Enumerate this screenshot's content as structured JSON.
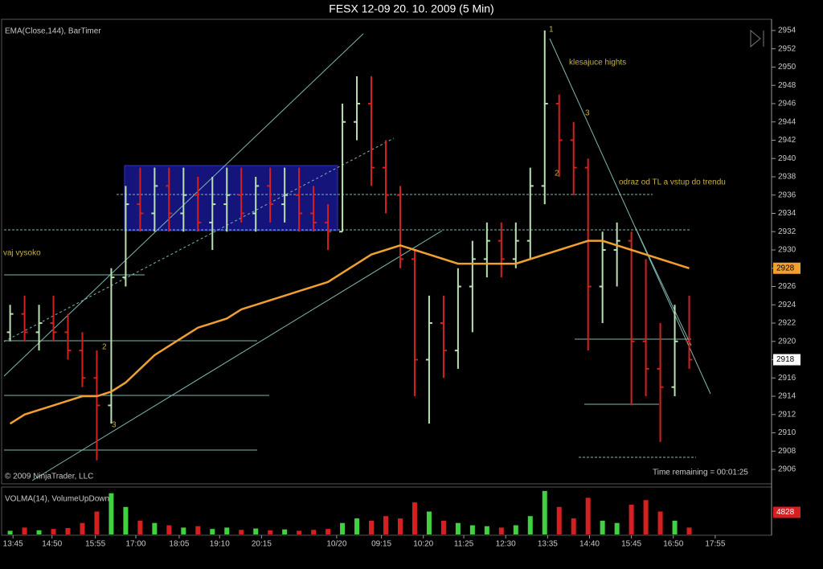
{
  "chart_data": {
    "type": "ohlc",
    "title": "FESX 12-09  20. 10. 2009 (5 Min)",
    "indicator_label": "EMA(Close,144), BarTimer",
    "volume_label": "VOLMA(14), VolumeUpDown",
    "copyright": "© 2009 NinjaTrader, LLC",
    "timer": "Time remaining = 00:01:25",
    "annotations": [
      "klesajuce hights",
      "odraz od TL a vstup do trendu",
      "vaj vysoko",
      "1",
      "2",
      "3",
      "2",
      "3"
    ],
    "xlim": [
      -0.7,
      52.7
    ],
    "xticks": [
      {
        "value": 0.2,
        "label": "13:45"
      },
      {
        "value": 2.9,
        "label": "14:50"
      },
      {
        "value": 5.9,
        "label": "15:55"
      },
      {
        "value": 8.7,
        "label": "17:00"
      },
      {
        "value": 11.7,
        "label": "18:05"
      },
      {
        "value": 14.5,
        "label": "19:10"
      },
      {
        "value": 17.4,
        "label": "20:15"
      },
      {
        "value": 22.6,
        "label": "10/20"
      },
      {
        "value": 25.7,
        "label": "09:15"
      },
      {
        "value": 28.6,
        "label": "10:20"
      },
      {
        "value": 31.4,
        "label": "11:25"
      },
      {
        "value": 34.3,
        "label": "12:30"
      },
      {
        "value": 37.2,
        "label": "13:35"
      },
      {
        "value": 40.1,
        "label": "14:40"
      },
      {
        "value": 43,
        "label": "15:45"
      },
      {
        "value": 45.9,
        "label": "16:50"
      },
      {
        "value": 48.8,
        "label": "17:55"
      }
    ],
    "ylim": [
      2904.6,
      2955.4
    ],
    "yticks": [
      2906,
      2908,
      2910,
      2912,
      2914,
      2916,
      2918,
      2920,
      2922,
      2924,
      2926,
      2928,
      2930,
      2932,
      2934,
      2936,
      2938,
      2940,
      2942,
      2944,
      2946,
      2948,
      2950,
      2952,
      2954
    ],
    "up_color": "#b8e0b0",
    "down_color": "#d42020",
    "open": [
      2921,
      2923,
      2921,
      2922,
      2921,
      2919,
      2916,
      2913,
      2927,
      2935,
      2934,
      2937,
      2934,
      2936,
      2933,
      2935,
      2936,
      2934,
      2937,
      2935,
      2936,
      2934,
      2933,
      2932,
      2944,
      2946,
      2939,
      2936,
      2929,
      2918,
      2922,
      2919,
      2926,
      2929,
      2931,
      2929,
      2931,
      2937,
      2946,
      2942,
      2939,
      2926,
      2930,
      2931,
      2920,
      2917,
      2915,
      2920
    ],
    "high": [
      2924,
      2925,
      2924,
      2925,
      2923,
      2921,
      2919,
      2928,
      2937,
      2939,
      2939,
      2939,
      2939,
      2938,
      2938,
      2939,
      2939,
      2938,
      2939,
      2939,
      2939,
      2937,
      2935,
      2946,
      2949,
      2949,
      2942,
      2937,
      2930,
      2925,
      2925,
      2928,
      2931,
      2933,
      2933,
      2933,
      2939,
      2954,
      2947,
      2944,
      2940,
      2932,
      2933,
      2932,
      2929,
      2922,
      2924,
      2925
    ],
    "low": [
      2920,
      2920,
      2919,
      2920,
      2918,
      2915,
      2907,
      2911,
      2926,
      2932,
      2932,
      2932,
      2932,
      2932,
      2930,
      2932,
      2933,
      2932,
      2933,
      2933,
      2932,
      2932,
      2930,
      2932,
      2942,
      2937,
      2934,
      2928,
      2914,
      2911,
      2916,
      2917,
      2921,
      2927,
      2927,
      2928,
      2929,
      2935,
      2938,
      2936,
      2919,
      2922,
      2926,
      2913,
      2914,
      2909,
      2914,
      2917
    ],
    "close": [
      2923,
      2921,
      2922,
      2921,
      2919,
      2916,
      2913,
      2927,
      2935,
      2934,
      2937,
      2934,
      2936,
      2933,
      2935,
      2936,
      2934,
      2937,
      2935,
      2936,
      2934,
      2933,
      2932,
      2944,
      2946,
      2939,
      2936,
      2929,
      2918,
      2922,
      2919,
      2926,
      2929,
      2931,
      2929,
      2931,
      2937,
      2946,
      2942,
      2939,
      2926,
      2930,
      2931,
      2920,
      2917,
      2915,
      2920,
      2918
    ],
    "ema": {
      "name": "EMA(Close,144)",
      "color": "#f0a030",
      "values": [
        2911,
        2912,
        2912.5,
        2913,
        2913.5,
        2914,
        2914,
        2914.5,
        2915.5,
        2917,
        2918.5,
        2919.5,
        2920.5,
        2921.5,
        2922,
        2922.5,
        2923.5,
        2924,
        2924.5,
        2925,
        2925.5,
        2926,
        2926.5,
        2927.5,
        2928.5,
        2929.5,
        2930,
        2930.5,
        2930,
        2929.5,
        2929,
        2928.5,
        2928.5,
        2928.5,
        2928.5,
        2928.5,
        2929,
        2929.5,
        2930,
        2930.5,
        2931,
        2931,
        2930.5,
        2930,
        2929.5,
        2929,
        2928.5,
        2928
      ]
    },
    "ema_last": 2928,
    "last_price": 2918,
    "volume": [
      800,
      1500,
      900,
      1200,
      1400,
      2500,
      5000,
      9000,
      6000,
      3000,
      2500,
      2000,
      1500,
      1800,
      1200,
      1500,
      1000,
      1300,
      900,
      1100,
      800,
      1000,
      1200,
      2500,
      3500,
      3000,
      4000,
      3500,
      7000,
      5000,
      3000,
      2500,
      2000,
      1800,
      1500,
      2000,
      4000,
      9500,
      6000,
      3500,
      8000,
      3000,
      2500,
      6500,
      7500,
      5000,
      3000,
      1500
    ],
    "vlim": [
      0,
      10000
    ],
    "volume_last": 4828
  }
}
